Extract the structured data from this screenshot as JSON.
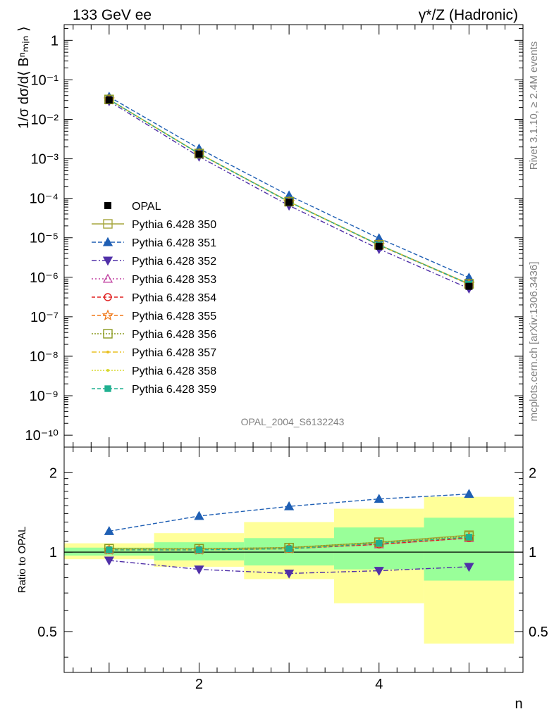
{
  "header": {
    "left": "133 GeV ee",
    "right": "γ*/Z (Hadronic)"
  },
  "side_labels": {
    "rivet": "Rivet 3.1.10, ≥ 2.4M events",
    "mcplots": "mcplots.cern.ch [arXiv:1306.3436]"
  },
  "watermark": "OPAL_2004_S6132243",
  "ylabel_main": "1/σ dσ/d⟨ Bⁿₘᵢₙ ⟩",
  "ylabel_ratio": "Ratio to OPAL",
  "xlabel": "n",
  "legend": [
    "OPAL",
    "Pythia 6.428 350",
    "Pythia 6.428 351",
    "Pythia 6.428 352",
    "Pythia 6.428 353",
    "Pythia 6.428 354",
    "Pythia 6.428 355",
    "Pythia 6.428 356",
    "Pythia 6.428 357",
    "Pythia 6.428 358",
    "Pythia 6.428 359"
  ],
  "chart_data": {
    "type": "line",
    "x": [
      1,
      2,
      3,
      4,
      5
    ],
    "xlim": [
      0.5,
      5.6
    ],
    "ylim": [
      5e-11,
      2.5
    ],
    "yscale": "log",
    "y_ticks": [
      "1",
      "10⁻¹",
      "10⁻²",
      "10⁻³",
      "10⁻⁴",
      "10⁻⁵",
      "10⁻⁶",
      "10⁻⁷",
      "10⁻⁸",
      "10⁻⁹",
      "10⁻¹⁰"
    ],
    "x_ticks": [
      "2",
      "4"
    ],
    "ratio_ylim": [
      0.35,
      2.5
    ],
    "ratio_yscale": "log",
    "ratio_y_ticks": [
      "0.5",
      "1",
      "2"
    ],
    "reference": {
      "name": "OPAL",
      "values": [
        0.031,
        0.00132,
        7.9e-05,
        6.1e-06,
        5.9e-07
      ]
    },
    "band_edges": [
      0.5,
      1.5,
      2.5,
      3.5,
      4.5,
      5.5
    ],
    "band_inner": [
      [
        0.97,
        1.04
      ],
      [
        0.93,
        1.09
      ],
      [
        0.89,
        1.13
      ],
      [
        0.86,
        1.24
      ],
      [
        0.78,
        1.35
      ]
    ],
    "band_outer": [
      [
        0.94,
        1.08
      ],
      [
        0.88,
        1.18
      ],
      [
        0.79,
        1.3
      ],
      [
        0.64,
        1.46
      ],
      [
        0.45,
        1.62
      ]
    ],
    "series": [
      {
        "name": "Pythia 6.428 350",
        "color": "#a6a63c",
        "marker": "open-square",
        "dash": "",
        "ratio": [
          1.03,
          1.03,
          1.04,
          1.09,
          1.16
        ]
      },
      {
        "name": "Pythia 6.428 351",
        "color": "#1f5fb4",
        "marker": "triangle-up",
        "dash": "6,3",
        "ratio": [
          1.2,
          1.37,
          1.49,
          1.59,
          1.66
        ]
      },
      {
        "name": "Pythia 6.428 352",
        "color": "#5030a8",
        "marker": "triangle-down",
        "dash": "7,3,2,3",
        "ratio": [
          0.93,
          0.86,
          0.83,
          0.85,
          0.88
        ]
      },
      {
        "name": "Pythia 6.428 353",
        "color": "#c040a0",
        "marker": "open-triangle-up",
        "dash": "2,3",
        "ratio": [
          1.02,
          1.02,
          1.03,
          1.07,
          1.13
        ]
      },
      {
        "name": "Pythia 6.428 354",
        "color": "#e02020",
        "marker": "open-circle",
        "dash": "5,3",
        "ratio": [
          1.02,
          1.02,
          1.03,
          1.07,
          1.13
        ]
      },
      {
        "name": "Pythia 6.428 355",
        "color": "#f07818",
        "marker": "open-star",
        "dash": "5,3",
        "ratio": [
          1.02,
          1.02,
          1.03,
          1.08,
          1.14
        ]
      },
      {
        "name": "Pythia 6.428 356",
        "color": "#8a9a1e",
        "marker": "open-square",
        "dash": "2,2",
        "ratio": [
          1.03,
          1.03,
          1.04,
          1.09,
          1.15
        ]
      },
      {
        "name": "Pythia 6.428 357",
        "color": "#e8c020",
        "marker": "dot",
        "dash": "7,3,2,3",
        "ratio": [
          1.02,
          1.02,
          1.03,
          1.08,
          1.14
        ]
      },
      {
        "name": "Pythia 6.428 358",
        "color": "#d8d830",
        "marker": "dot",
        "dash": "2,2",
        "ratio": [
          1.02,
          1.02,
          1.03,
          1.08,
          1.14
        ]
      },
      {
        "name": "Pythia 6.428 359",
        "color": "#20b090",
        "marker": "filled-square",
        "dash": "5,3",
        "ratio": [
          1.02,
          1.02,
          1.03,
          1.08,
          1.14
        ]
      }
    ]
  }
}
